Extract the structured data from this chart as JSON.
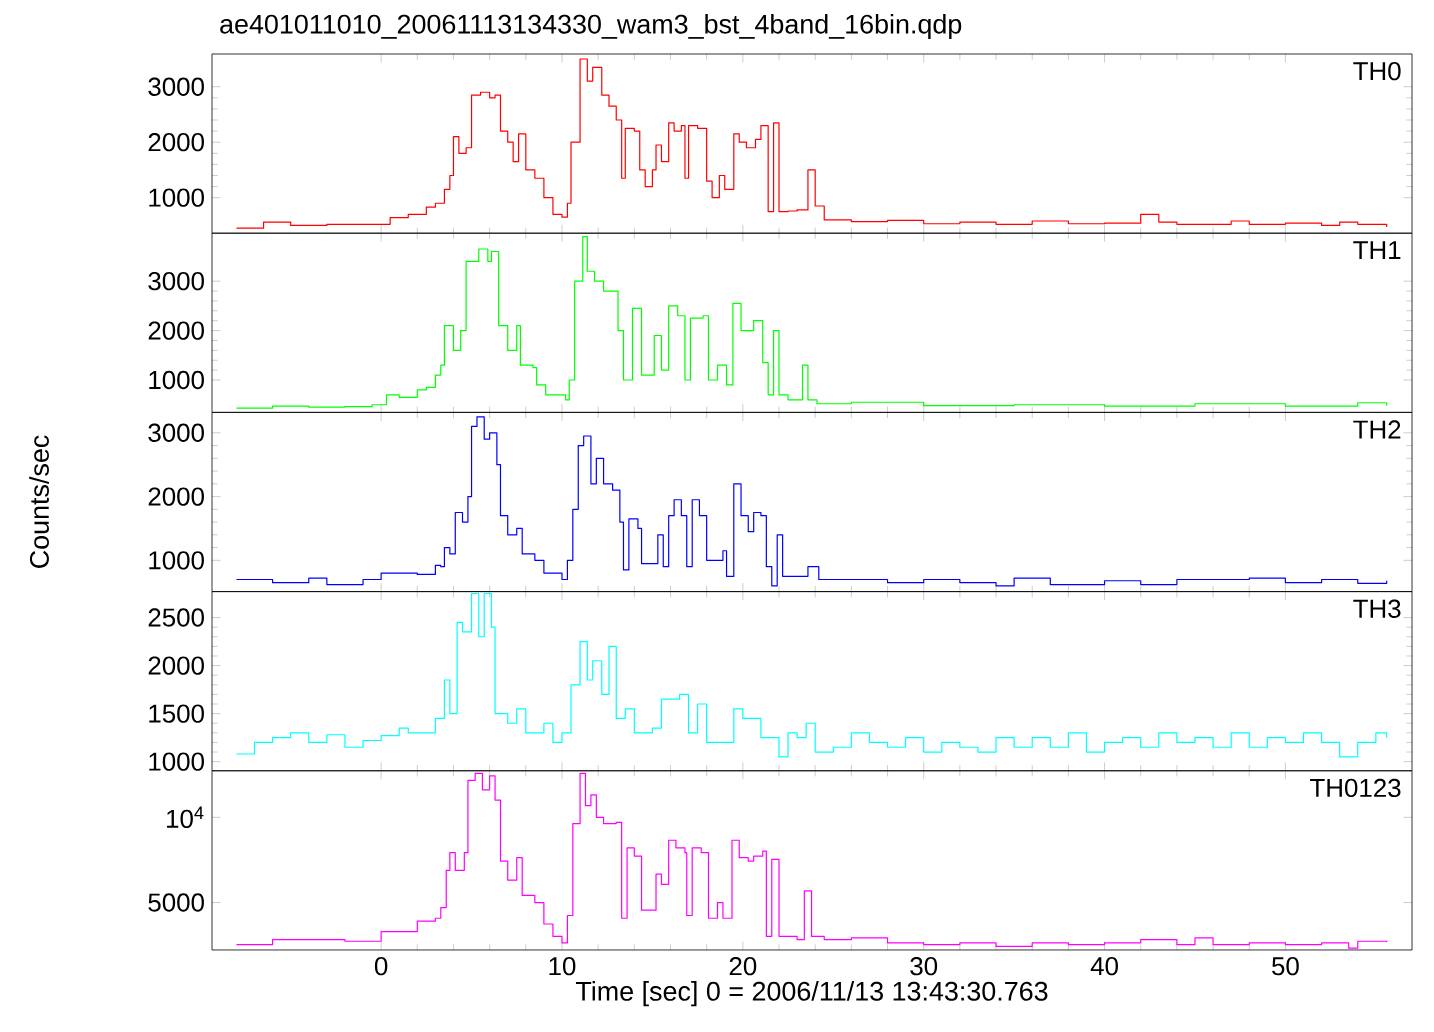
{
  "chart_data": [
    {
      "type": "step",
      "title": "ae401011010_20061113134330_wam3_bst_4band_16bin.qdp",
      "tick_labels": "y",
      "xlim": [
        -9.35,
        57.0
      ],
      "xticks": [
        0,
        10,
        20,
        30,
        40,
        50
      ],
      "ylim": [
        360,
        3590
      ],
      "yticks": [
        1000,
        2000,
        3000
      ],
      "x": [
        -8,
        -6.5,
        -5,
        -3,
        -1,
        0.5,
        1.5,
        2.5,
        3,
        3.5,
        3.8,
        4,
        4.3,
        4.7,
        5,
        5.5,
        6,
        6.3,
        6.6,
        7,
        7.3,
        7.6,
        8,
        8.5,
        9,
        9.5,
        10,
        10.3,
        10.5,
        11,
        11.4,
        11.7,
        12.2,
        12.6,
        13,
        13.3,
        13.5,
        14,
        14.3,
        14.6,
        15,
        15.2,
        15.5,
        15.9,
        16.2,
        16.6,
        16.8,
        17,
        17.5,
        18,
        18.3,
        18.7,
        19,
        19.5,
        19.8,
        20.2,
        20.7,
        21,
        21.4,
        21.7,
        22,
        22.5,
        23,
        23.6,
        24,
        24.5,
        26,
        28,
        30,
        32,
        34,
        36,
        38,
        40,
        42,
        43,
        44,
        46,
        47,
        48,
        50,
        52,
        53,
        54,
        55.6
      ],
      "series": [
        {
          "name": "TH0",
          "color": "#ff0000",
          "values": [
            450,
            560,
            500,
            520,
            520,
            640,
            700,
            830,
            900,
            1150,
            1400,
            2100,
            1800,
            1900,
            2850,
            2900,
            2800,
            2850,
            2200,
            2000,
            1650,
            2150,
            1500,
            1350,
            1000,
            700,
            650,
            900,
            2000,
            3500,
            3100,
            3350,
            2850,
            2650,
            2400,
            1350,
            2250,
            2200,
            1500,
            1200,
            1500,
            1950,
            1650,
            2350,
            2200,
            2300,
            1350,
            2300,
            2250,
            1300,
            1000,
            1400,
            1150,
            2150,
            2000,
            1900,
            2050,
            2300,
            750,
            2350,
            750,
            760,
            780,
            1500,
            850,
            600,
            570,
            590,
            530,
            560,
            520,
            580,
            530,
            540,
            700,
            560,
            520,
            520,
            580,
            520,
            540,
            500,
            560,
            520,
            470
          ]
        }
      ]
    },
    {
      "type": "step",
      "tick_labels": "y",
      "xlim": [
        -9.35,
        57.0
      ],
      "xticks": [
        0,
        10,
        20,
        30,
        40,
        50
      ],
      "ylim": [
        345,
        3970
      ],
      "yticks": [
        1000,
        2000,
        3000
      ],
      "x": [
        -8,
        -6,
        -4,
        -2,
        -0.5,
        0.3,
        1,
        2,
        2.5,
        3,
        3.3,
        3.5,
        4,
        4.4,
        4.7,
        5.4,
        5.9,
        6.1,
        6.5,
        7,
        7.5,
        7.7,
        8.4,
        8.6,
        9.1,
        10.2,
        10.4,
        10.7,
        11.15,
        11.4,
        11.8,
        12.3,
        13.1,
        13.4,
        13.9,
        14.4,
        15.1,
        15.5,
        15.9,
        16.4,
        16.8,
        17.1,
        17.8,
        18.1,
        18.6,
        19.1,
        19.45,
        19.9,
        20.6,
        21.1,
        21.4,
        21.7,
        22,
        22.5,
        23.3,
        23.6,
        24.1,
        26,
        30,
        35,
        40,
        45,
        50,
        54,
        55.6
      ],
      "series": [
        {
          "name": "TH1",
          "color": "#00ff00",
          "values": [
            430,
            470,
            450,
            460,
            500,
            700,
            650,
            800,
            850,
            1100,
            1300,
            2100,
            1600,
            2000,
            3400,
            3650,
            3400,
            3600,
            2100,
            1600,
            2100,
            1300,
            1250,
            900,
            700,
            600,
            1000,
            3000,
            3900,
            3200,
            3000,
            2800,
            2000,
            1000,
            2450,
            1100,
            1900,
            1200,
            2500,
            2300,
            1000,
            2250,
            2300,
            1000,
            1300,
            900,
            2550,
            2000,
            2200,
            1350,
            700,
            2000,
            700,
            600,
            1300,
            600,
            520,
            550,
            480,
            500,
            470,
            520,
            470,
            540,
            480
          ]
        }
      ]
    },
    {
      "type": "step",
      "tick_labels": "y",
      "ylabel": "Counts/sec",
      "xlim": [
        -9.35,
        57.0
      ],
      "xticks": [
        0,
        10,
        20,
        30,
        40,
        50
      ],
      "ylim": [
        510,
        3320
      ],
      "yticks": [
        1000,
        2000,
        3000
      ],
      "x": [
        -8,
        -6,
        -4,
        -3,
        -1,
        0,
        2,
        3,
        3.3,
        3.5,
        3.8,
        4.1,
        4.5,
        4.8,
        5,
        5.3,
        5.7,
        6,
        6.4,
        6.6,
        7,
        7.5,
        7.8,
        8.5,
        9,
        10,
        10.3,
        10.6,
        10.9,
        11.2,
        11.6,
        11.9,
        12.3,
        12.8,
        13.2,
        13.4,
        13.7,
        14.2,
        14.4,
        15,
        15.3,
        15.6,
        15.9,
        16.2,
        16.6,
        16.9,
        17.2,
        17.6,
        18,
        18.6,
        18.9,
        19.1,
        19.5,
        19.9,
        20.3,
        20.6,
        21,
        21.3,
        21.6,
        21.9,
        22.2,
        23,
        23.6,
        24.2,
        26,
        28,
        30,
        32,
        34,
        35,
        37,
        40,
        42,
        44,
        46,
        48,
        50,
        52,
        54,
        55.6
      ],
      "series": [
        {
          "name": "TH2",
          "color": "#0000ff",
          "values": [
            700,
            650,
            720,
            620,
            700,
            800,
            780,
            920,
            900,
            1200,
            1100,
            1750,
            1600,
            2000,
            3100,
            3250,
            2900,
            3000,
            2500,
            1700,
            1400,
            1500,
            1100,
            1000,
            800,
            700,
            1000,
            1800,
            2800,
            2950,
            2200,
            2600,
            2200,
            2100,
            1600,
            850,
            1650,
            1500,
            950,
            950,
            1400,
            900,
            1700,
            1950,
            1700,
            900,
            1950,
            1700,
            1000,
            1000,
            1150,
            750,
            2200,
            1700,
            1450,
            1750,
            1700,
            900,
            600,
            1400,
            750,
            750,
            900,
            700,
            700,
            650,
            700,
            650,
            600,
            720,
            620,
            680,
            620,
            700,
            700,
            720,
            650,
            700,
            640,
            680
          ]
        }
      ]
    },
    {
      "type": "step",
      "tick_labels": "y",
      "xlim": [
        -9.35,
        57.0
      ],
      "xticks": [
        0,
        10,
        20,
        30,
        40,
        50
      ],
      "ylim": [
        905,
        2770
      ],
      "yticks": [
        1000,
        1500,
        2000,
        2500
      ],
      "x": [
        -8,
        -7,
        -6,
        -5,
        -4,
        -3,
        -2,
        -1,
        0,
        1,
        1.5,
        2.5,
        3,
        3.5,
        3.8,
        4.2,
        4.5,
        5,
        5.4,
        5.7,
        6.1,
        6.3,
        7,
        7.5,
        8,
        9,
        9.5,
        10,
        10.5,
        11,
        11.4,
        11.7,
        12.2,
        12.6,
        13,
        13.5,
        14,
        15,
        15.5,
        16.5,
        17,
        17.5,
        18,
        19,
        19.5,
        20,
        21,
        22,
        22.5,
        23,
        23.5,
        24,
        25,
        26,
        27,
        28,
        29,
        30,
        31,
        32,
        33,
        34,
        35,
        36,
        37,
        38,
        39,
        40,
        41,
        42,
        43,
        44,
        45,
        46,
        47,
        48,
        49,
        50,
        51,
        52,
        53,
        54,
        55,
        55.6
      ],
      "series": [
        {
          "name": "TH3",
          "color": "#00ffff",
          "values": [
            1080,
            1200,
            1250,
            1300,
            1200,
            1280,
            1150,
            1220,
            1270,
            1350,
            1300,
            1300,
            1450,
            1850,
            1500,
            2450,
            2350,
            2750,
            2300,
            2750,
            2400,
            1500,
            1400,
            1550,
            1300,
            1400,
            1200,
            1300,
            1800,
            2250,
            1850,
            2050,
            1700,
            2200,
            1450,
            1550,
            1300,
            1350,
            1650,
            1700,
            1300,
            1600,
            1200,
            1200,
            1550,
            1450,
            1250,
            1050,
            1300,
            1250,
            1400,
            1100,
            1150,
            1300,
            1200,
            1150,
            1250,
            1100,
            1200,
            1150,
            1100,
            1250,
            1150,
            1250,
            1150,
            1300,
            1100,
            1200,
            1250,
            1150,
            1300,
            1200,
            1250,
            1150,
            1300,
            1150,
            1250,
            1200,
            1300,
            1200,
            1050,
            1200,
            1300,
            1250
          ]
        }
      ]
    },
    {
      "type": "step",
      "log": "y",
      "xlabel": "Time [sec] 0 = 2006/11/13 13:43:30.763",
      "xlim": [
        -9.35,
        57.0
      ],
      "xticks": [
        0,
        10,
        20,
        30,
        40,
        50
      ],
      "ylim": [
        3400,
        14600
      ],
      "yticks": [
        5000,
        {
          "value": 10000,
          "label": "10$^{4}$"
        }
      ],
      "x": [
        -8,
        -6,
        -4,
        -2,
        0,
        1,
        2,
        3,
        3.3,
        3.6,
        3.8,
        4.1,
        4.6,
        4.8,
        5.2,
        5.6,
        6,
        6.3,
        6.6,
        7,
        7.5,
        7.8,
        8.5,
        9,
        9.5,
        10,
        10.3,
        10.6,
        11,
        11.3,
        11.6,
        11.9,
        12.3,
        13,
        13.3,
        13.6,
        14,
        14.4,
        15,
        15.2,
        15.5,
        15.9,
        16.3,
        16.8,
        16.9,
        17.2,
        17.7,
        18.1,
        18.6,
        18.9,
        19.4,
        19.8,
        20.3,
        20.6,
        21.1,
        21.3,
        21.6,
        22,
        23,
        23.4,
        23.8,
        24.5,
        26,
        28,
        30,
        32,
        34,
        36,
        38,
        40,
        42,
        44,
        45,
        46,
        48,
        50,
        52,
        53.5,
        54,
        55.6
      ],
      "series": [
        {
          "name": "TH0123",
          "color": "#ff00ff",
          "values": [
            3550,
            3700,
            3700,
            3650,
            3950,
            3950,
            4300,
            4400,
            4800,
            6500,
            7500,
            6500,
            7500,
            13500,
            14300,
            12500,
            14000,
            11500,
            7000,
            6000,
            7200,
            5300,
            5000,
            4200,
            3800,
            3600,
            4500,
            9500,
            14300,
            11000,
            12000,
            10000,
            9500,
            9600,
            4400,
            7800,
            7300,
            4700,
            4700,
            6300,
            5800,
            8300,
            7800,
            7500,
            4500,
            7800,
            7500,
            4400,
            5000,
            4400,
            8300,
            7200,
            7000,
            7300,
            7600,
            3800,
            7100,
            3800,
            3700,
            5500,
            3800,
            3700,
            3750,
            3600,
            3550,
            3600,
            3500,
            3600,
            3550,
            3600,
            3700,
            3550,
            3750,
            3550,
            3600,
            3550,
            3600,
            3450,
            3650,
            3620
          ]
        }
      ]
    }
  ]
}
